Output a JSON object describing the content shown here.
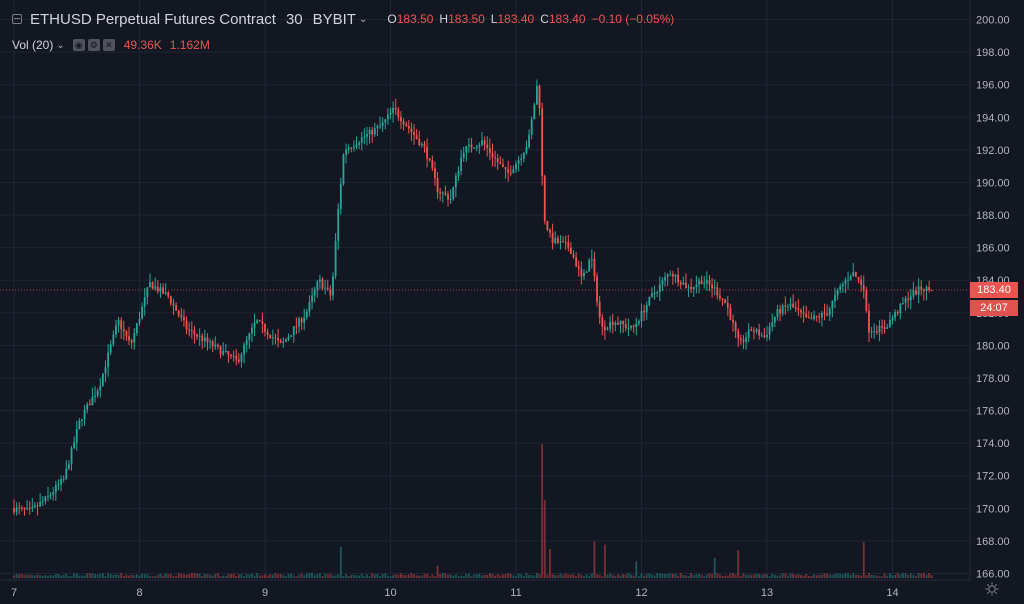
{
  "header": {
    "symbol": "ETHUSD Perpetual Futures Contract",
    "interval": "30",
    "exchange": "BYBIT",
    "ohlc": [
      {
        "k": "O",
        "v": "183.50"
      },
      {
        "k": "H",
        "v": "183.50"
      },
      {
        "k": "L",
        "v": "183.40"
      },
      {
        "k": "C",
        "v": "183.40"
      }
    ],
    "change": "−0.10 (−0.05%)"
  },
  "volume_legend": {
    "title": "Vol (20)",
    "value": "49.36K",
    "ma_value": "1.162M"
  },
  "price_tag": "183.40",
  "countdown_tag": "24:07",
  "colors": {
    "background": "#131722",
    "up": "#26a69a",
    "down": "#ef5350",
    "grid": "#1f2433",
    "text": "#b2b5be"
  },
  "icons": [
    "collapse-icon",
    "eye-icon",
    "settings-icon",
    "close-icon",
    "chevron-down-icon",
    "gear-icon"
  ],
  "chart_data": {
    "type": "candlestick",
    "interval_minutes": 30,
    "x_tick_labels": [
      "7",
      "8",
      "9",
      "10",
      "11",
      "12",
      "13",
      "14"
    ],
    "y_tick_labels": [
      "166.00",
      "168.00",
      "170.00",
      "172.00",
      "174.00",
      "176.00",
      "178.00",
      "180.00",
      "182.00",
      "184.00",
      "186.00",
      "188.00",
      "190.00",
      "192.00",
      "194.00",
      "196.00",
      "198.00",
      "200.00"
    ],
    "ylim": [
      165.6,
      201.2
    ],
    "last_price": 183.4,
    "price_keypoints": [
      [
        0,
        170.0
      ],
      [
        0.15,
        169.8
      ],
      [
        0.28,
        170.6
      ],
      [
        0.42,
        171.8
      ],
      [
        0.55,
        175.5
      ],
      [
        0.7,
        177.5
      ],
      [
        0.85,
        181.5
      ],
      [
        0.95,
        180.0
      ],
      [
        1.05,
        182.5
      ],
      [
        1.1,
        183.8
      ],
      [
        1.25,
        183.0
      ],
      [
        1.4,
        181.0
      ],
      [
        1.6,
        180.0
      ],
      [
        1.8,
        179.0
      ],
      [
        1.95,
        181.5
      ],
      [
        2.15,
        180.0
      ],
      [
        2.35,
        182.0
      ],
      [
        2.45,
        184.0
      ],
      [
        2.55,
        183.0
      ],
      [
        2.6,
        188.0
      ],
      [
        2.65,
        192.0
      ],
      [
        2.75,
        192.5
      ],
      [
        2.85,
        193.0
      ],
      [
        2.95,
        193.5
      ],
      [
        3.05,
        194.5
      ],
      [
        3.15,
        193.5
      ],
      [
        3.3,
        192.0
      ],
      [
        3.4,
        189.5
      ],
      [
        3.5,
        189.0
      ],
      [
        3.6,
        192.0
      ],
      [
        3.75,
        192.5
      ],
      [
        3.85,
        191.5
      ],
      [
        3.95,
        190.5
      ],
      [
        4.05,
        191.5
      ],
      [
        4.12,
        192.5
      ],
      [
        4.2,
        196.5
      ],
      [
        4.24,
        188.0
      ],
      [
        4.3,
        186.5
      ],
      [
        4.45,
        186.0
      ],
      [
        4.55,
        184.0
      ],
      [
        4.62,
        185.5
      ],
      [
        4.7,
        181.0
      ],
      [
        4.8,
        181.5
      ],
      [
        4.95,
        181.0
      ],
      [
        5.1,
        183.0
      ],
      [
        5.25,
        184.5
      ],
      [
        5.4,
        183.5
      ],
      [
        5.5,
        184.0
      ],
      [
        5.6,
        183.5
      ],
      [
        5.7,
        182.5
      ],
      [
        5.8,
        180.0
      ],
      [
        5.9,
        181.0
      ],
      [
        6.0,
        180.5
      ],
      [
        6.1,
        182.0
      ],
      [
        6.2,
        182.5
      ],
      [
        6.35,
        181.5
      ],
      [
        6.5,
        182.0
      ],
      [
        6.6,
        183.5
      ],
      [
        6.7,
        184.5
      ],
      [
        6.8,
        183.5
      ],
      [
        6.82,
        181.0
      ],
      [
        6.95,
        181.0
      ],
      [
        7.05,
        182.0
      ],
      [
        7.15,
        183.0
      ],
      [
        7.25,
        183.5
      ],
      [
        7.32,
        183.4
      ]
    ],
    "volume": {
      "baseline": 30000,
      "spikes": [
        {
          "day_offset": 2.6,
          "value": 280000
        },
        {
          "day_offset": 3.38,
          "value": 110000
        },
        {
          "day_offset": 4.2,
          "value": 1200000
        },
        {
          "day_offset": 4.22,
          "value": 700000
        },
        {
          "day_offset": 4.28,
          "value": 260000
        },
        {
          "day_offset": 4.63,
          "value": 330000
        },
        {
          "day_offset": 4.7,
          "value": 300000
        },
        {
          "day_offset": 4.95,
          "value": 150000
        },
        {
          "day_offset": 5.58,
          "value": 180000
        },
        {
          "day_offset": 5.78,
          "value": 250000
        },
        {
          "day_offset": 6.78,
          "value": 320000
        }
      ]
    }
  }
}
